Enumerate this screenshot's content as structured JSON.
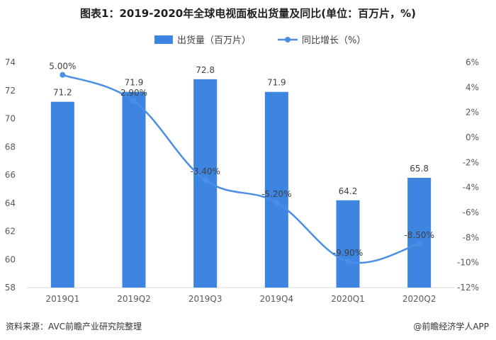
{
  "title": "图表1：2019-2020年全球电视面板出货量及同比(单位：百万片，%)",
  "source": "资料来源：AVC前瞻产业研究院整理",
  "brand": "@前瞻经济学人APP",
  "colors": {
    "bar": "#3d85e0",
    "line": "#4a8ee6",
    "axis": "#d9d9d9"
  },
  "chart_data": {
    "type": "bar",
    "categories": [
      "2019Q1",
      "2019Q2",
      "2019Q3",
      "2019Q4",
      "2020Q1",
      "2020Q2"
    ],
    "series": [
      {
        "name": "出货量（百万片）",
        "type": "bar",
        "axis": "left",
        "values": [
          71.2,
          71.9,
          72.8,
          71.9,
          64.2,
          65.8
        ],
        "labels": [
          "71.2",
          "71.9",
          "72.8",
          "71.9",
          "64.2",
          "65.8"
        ]
      },
      {
        "name": "同比增长（%）",
        "type": "line",
        "axis": "right",
        "values": [
          5.0,
          2.9,
          -3.4,
          -5.2,
          -9.9,
          -8.5
        ],
        "labels": [
          "5.00%",
          "2.90%",
          "-3.40%",
          "-5.20%",
          "-9.90%",
          "-8.50%"
        ]
      }
    ],
    "ylim": [
      58,
      74
    ],
    "yticks": [
      "58",
      "60",
      "62",
      "64",
      "66",
      "68",
      "70",
      "72",
      "74"
    ],
    "y2lim": [
      -12,
      6
    ],
    "y2ticks": [
      "6%",
      "4%",
      "2%",
      "0%",
      "-2%",
      "-4%",
      "-6%",
      "-8%",
      "-10%",
      "-12%"
    ],
    "legend_position": "top-center"
  }
}
